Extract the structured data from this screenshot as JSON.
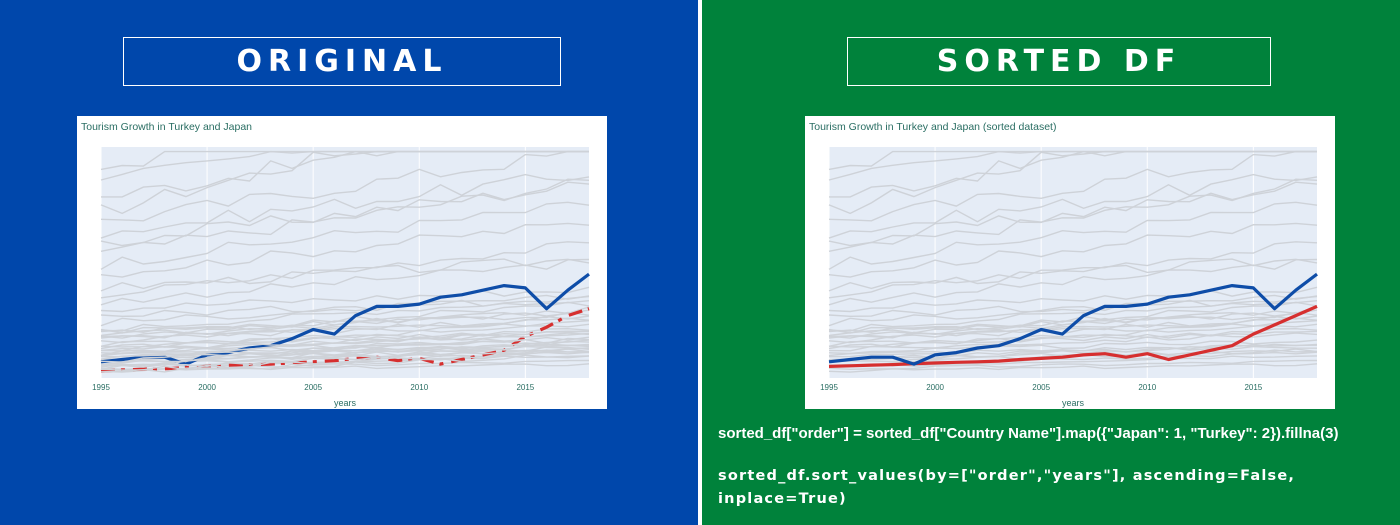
{
  "colors": {
    "left_bg": "#0047AB",
    "right_bg": "#00823B",
    "japan": "#0E4DA8",
    "turkey": "#D62F2F",
    "others": "#CED2D8",
    "plot_bg": "#E5ECF6",
    "title_text": "#2A6E63"
  },
  "left": {
    "heading": "ORIGINAL"
  },
  "right": {
    "heading": "SORTED DF",
    "code_line_1": "sorted_df[\"order\"] = sorted_df[\"Country Name\"].map({\"Japan\": 1, \"Turkey\": 2}).fillna(3)",
    "code_line_2": "sorted_df.sort_values(by=[\"order\",\"years\"], ascending=False, inplace=True)"
  },
  "chart_data": [
    {
      "type": "line",
      "title": "Tourism Growth in Turkey and Japan",
      "xlabel": "years",
      "ylabel": "",
      "x_ticks": [
        "1995",
        "2000",
        "2005",
        "2010",
        "2015"
      ],
      "xlim": [
        1995,
        2018
      ],
      "ylim": [
        0,
        100
      ],
      "x": [
        1995,
        1996,
        1997,
        1998,
        1999,
        2000,
        2001,
        2002,
        2003,
        2004,
        2005,
        2006,
        2007,
        2008,
        2009,
        2010,
        2011,
        2012,
        2013,
        2014,
        2015,
        2016,
        2017,
        2018
      ],
      "series": [
        {
          "name": "Japan",
          "values": [
            7,
            8,
            9,
            9,
            6,
            10,
            11,
            13,
            14,
            17,
            21,
            19,
            27,
            31,
            31,
            32,
            35,
            36,
            38,
            40,
            39,
            30,
            38,
            45
          ]
        },
        {
          "name": "Turkey",
          "values": [
            3,
            3.5,
            3.8,
            4,
            4.5,
            5,
            5.5,
            5.7,
            6,
            6.5,
            7,
            7.5,
            8.5,
            9,
            7.5,
            8.5,
            6,
            8,
            10,
            12,
            18,
            22,
            27,
            30
          ]
        }
      ],
      "background_series_note": "many other countries drawn in light grey"
    },
    {
      "type": "line",
      "title": "Tourism Growth in Turkey and Japan (sorted dataset)",
      "xlabel": "years",
      "ylabel": "",
      "x_ticks": [
        "1995",
        "2000",
        "2005",
        "2010",
        "2015"
      ],
      "xlim": [
        1995,
        2018
      ],
      "ylim": [
        0,
        100
      ],
      "x": [
        1995,
        1996,
        1997,
        1998,
        1999,
        2000,
        2001,
        2002,
        2003,
        2004,
        2005,
        2006,
        2007,
        2008,
        2009,
        2010,
        2011,
        2012,
        2013,
        2014,
        2015,
        2016,
        2017,
        2018
      ],
      "series": [
        {
          "name": "Japan",
          "values": [
            7,
            8,
            9,
            9,
            6,
            10,
            11,
            13,
            14,
            17,
            21,
            19,
            27,
            31,
            31,
            32,
            35,
            36,
            38,
            40,
            39,
            30,
            38,
            45
          ]
        },
        {
          "name": "Turkey",
          "values": [
            5,
            5.3,
            5.6,
            5.8,
            6.2,
            6.5,
            6.8,
            7,
            7.3,
            8,
            8.5,
            9,
            10,
            10.5,
            9,
            10.5,
            8,
            10,
            12,
            14,
            19,
            23,
            27,
            31
          ]
        }
      ],
      "background_series_note": "many other countries drawn in light grey"
    }
  ]
}
